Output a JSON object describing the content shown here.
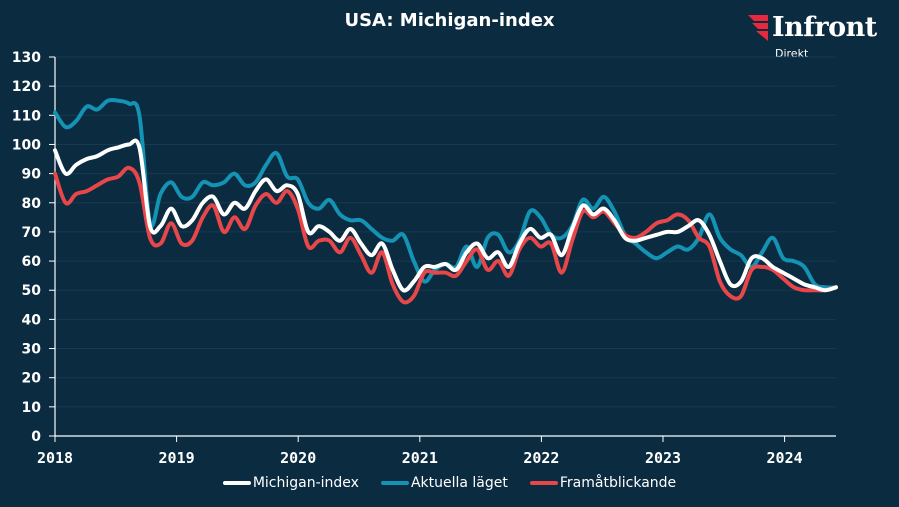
{
  "title": "USA: Michigan-index",
  "logo": {
    "brand": "Infront",
    "sub": "Direkt",
    "icon": "infront-logo-icon"
  },
  "colors": {
    "background": "#0b2b40",
    "michigan": "#ffffff",
    "aktuella": "#1593b4",
    "framat": "#e8474a",
    "axis": "#ffffff",
    "grid": "#163a50",
    "logo_red": "#e8293d"
  },
  "chart_data": {
    "type": "line",
    "title": "USA: Michigan-index",
    "xlabel": "",
    "ylabel": "",
    "ylim": [
      0,
      130
    ],
    "yticks": [
      0,
      10,
      20,
      30,
      40,
      50,
      60,
      70,
      80,
      90,
      100,
      110,
      120,
      130
    ],
    "xticks": [
      "2018",
      "2019",
      "2020",
      "2021",
      "2022",
      "2023",
      "2024"
    ],
    "x_start": "2018-01",
    "x_end": "2024-05",
    "grid": true,
    "legend_position": "bottom",
    "series": [
      {
        "name": "Michigan-index",
        "color": "#ffffff",
        "values": [
          98,
          90,
          93,
          95,
          96,
          98,
          99,
          100,
          99,
          72,
          72,
          78,
          72,
          74,
          80,
          82,
          76,
          80,
          78,
          84,
          88,
          84,
          86,
          83,
          70,
          72,
          70,
          67,
          71,
          66,
          62,
          66,
          57,
          50,
          53,
          58,
          58,
          59,
          57,
          63,
          66,
          61,
          63,
          58,
          66,
          71,
          68,
          69,
          62,
          71,
          79,
          76,
          78,
          74,
          68,
          67,
          68,
          69,
          70,
          70,
          72,
          74,
          69,
          60,
          52,
          53,
          61,
          61,
          58,
          56,
          54,
          52,
          51,
          50,
          51
        ]
      },
      {
        "name": "Aktuella läget",
        "color": "#1593b4",
        "values": [
          111,
          106,
          108,
          113,
          112,
          115,
          115,
          114,
          110,
          73,
          83,
          87,
          82,
          82,
          87,
          86,
          87,
          90,
          86,
          87,
          93,
          97,
          89,
          88,
          80,
          78,
          81,
          76,
          74,
          74,
          71,
          68,
          67,
          69,
          60,
          53,
          57,
          59,
          58,
          65,
          58,
          68,
          69,
          63,
          67,
          77,
          75,
          69,
          68,
          72,
          81,
          78,
          82,
          77,
          69,
          66,
          63,
          61,
          63,
          65,
          64,
          68,
          76,
          68,
          64,
          62,
          58,
          63,
          68,
          61,
          60,
          58,
          52,
          51,
          51
        ]
      },
      {
        "name": "Framåtblickande",
        "color": "#e8474a",
        "values": [
          90,
          80,
          83,
          84,
          86,
          88,
          89,
          92,
          87,
          68,
          66,
          73,
          66,
          67,
          75,
          79,
          70,
          75,
          71,
          79,
          83,
          80,
          84,
          78,
          65,
          67,
          67,
          63,
          68,
          62,
          56,
          63,
          52,
          46,
          48,
          56,
          56,
          56,
          55,
          60,
          64,
          57,
          60,
          55,
          64,
          68,
          65,
          66,
          56,
          67,
          77,
          75,
          77,
          73,
          69,
          68,
          70,
          73,
          74,
          76,
          74,
          68,
          65,
          53,
          48,
          48,
          57,
          58,
          57,
          54,
          51,
          50,
          50,
          50,
          51
        ]
      }
    ]
  },
  "legend": [
    {
      "label": "Michigan-index",
      "color": "#ffffff"
    },
    {
      "label": "Aktuella läget",
      "color": "#1593b4"
    },
    {
      "label": "Framåtblickande",
      "color": "#e8474a"
    }
  ]
}
